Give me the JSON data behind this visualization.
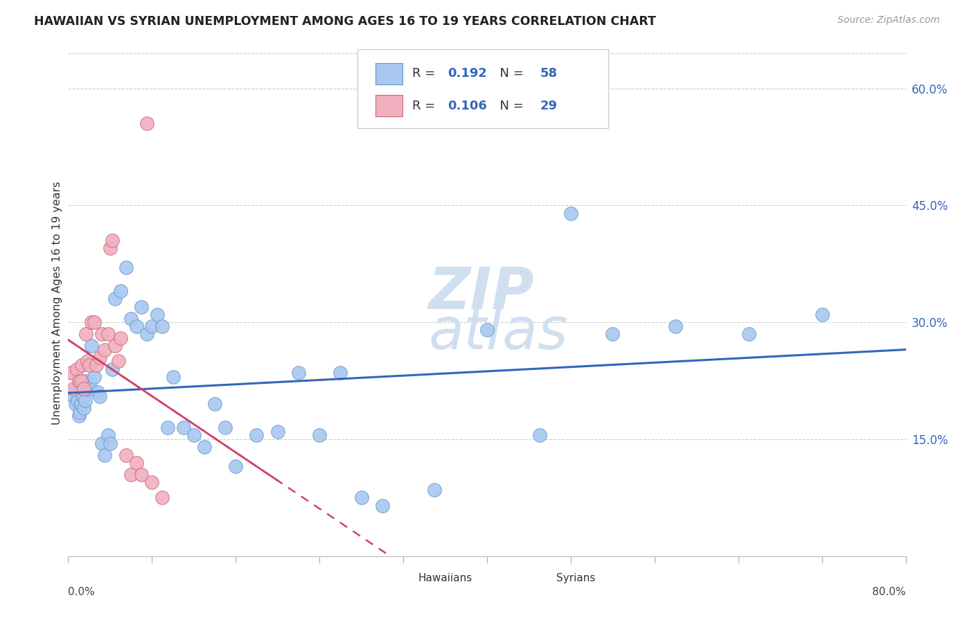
{
  "title": "HAWAIIAN VS SYRIAN UNEMPLOYMENT AMONG AGES 16 TO 19 YEARS CORRELATION CHART",
  "source": "Source: ZipAtlas.com",
  "ylabel": "Unemployment Among Ages 16 to 19 years",
  "xmin": 0.0,
  "xmax": 0.8,
  "ymin": 0.0,
  "ymax": 0.65,
  "yticks": [
    0.15,
    0.3,
    0.45,
    0.6
  ],
  "ytick_labels": [
    "15.0%",
    "30.0%",
    "45.0%",
    "60.0%"
  ],
  "hawaiian_color": "#a8c8f0",
  "hawaiian_edge": "#6699cc",
  "syrian_color": "#f0b0c0",
  "syrian_edge": "#cc6677",
  "r_hawaiian": 0.192,
  "n_hawaiian": 58,
  "r_syrian": 0.106,
  "n_syrian": 29,
  "hawaiian_x": [
    0.005,
    0.007,
    0.008,
    0.009,
    0.01,
    0.01,
    0.011,
    0.012,
    0.013,
    0.014,
    0.015,
    0.016,
    0.017,
    0.018,
    0.019,
    0.02,
    0.022,
    0.025,
    0.028,
    0.03,
    0.032,
    0.035,
    0.038,
    0.04,
    0.042,
    0.045,
    0.05,
    0.055,
    0.06,
    0.065,
    0.07,
    0.075,
    0.08,
    0.085,
    0.09,
    0.095,
    0.1,
    0.11,
    0.12,
    0.13,
    0.14,
    0.15,
    0.16,
    0.18,
    0.2,
    0.22,
    0.24,
    0.26,
    0.28,
    0.3,
    0.35,
    0.4,
    0.45,
    0.48,
    0.52,
    0.58,
    0.65,
    0.72
  ],
  "hawaiian_y": [
    0.205,
    0.195,
    0.215,
    0.2,
    0.215,
    0.18,
    0.185,
    0.195,
    0.21,
    0.205,
    0.19,
    0.2,
    0.225,
    0.215,
    0.215,
    0.22,
    0.27,
    0.23,
    0.21,
    0.205,
    0.145,
    0.13,
    0.155,
    0.145,
    0.24,
    0.33,
    0.34,
    0.37,
    0.305,
    0.295,
    0.32,
    0.285,
    0.295,
    0.31,
    0.295,
    0.165,
    0.23,
    0.165,
    0.155,
    0.14,
    0.195,
    0.165,
    0.115,
    0.155,
    0.16,
    0.235,
    0.155,
    0.235,
    0.075,
    0.065,
    0.085,
    0.29,
    0.155,
    0.44,
    0.285,
    0.295,
    0.285,
    0.31
  ],
  "syrian_x": [
    0.003,
    0.005,
    0.008,
    0.01,
    0.012,
    0.013,
    0.015,
    0.017,
    0.018,
    0.02,
    0.022,
    0.025,
    0.027,
    0.03,
    0.032,
    0.035,
    0.038,
    0.04,
    0.042,
    0.045,
    0.048,
    0.05,
    0.055,
    0.06,
    0.065,
    0.07,
    0.075,
    0.08,
    0.09
  ],
  "syrian_y": [
    0.235,
    0.215,
    0.24,
    0.225,
    0.225,
    0.245,
    0.215,
    0.285,
    0.25,
    0.245,
    0.3,
    0.3,
    0.245,
    0.255,
    0.285,
    0.265,
    0.285,
    0.395,
    0.405,
    0.27,
    0.25,
    0.28,
    0.13,
    0.105,
    0.12,
    0.105,
    0.555,
    0.095,
    0.075
  ],
  "watermark_top": "ZIP",
  "watermark_bottom": "atlas",
  "watermark_color": "#d0dff0",
  "background_color": "#ffffff",
  "grid_color": "#cccccc",
  "trend_line_hawaiian_color": "#3366bb",
  "trend_line_syrian_color": "#cc4466"
}
